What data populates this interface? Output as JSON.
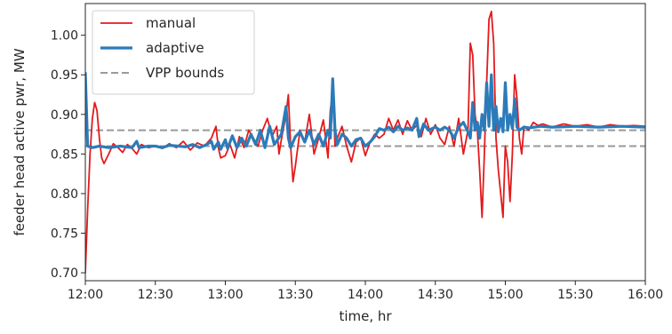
{
  "chart_data": {
    "type": "line",
    "xlabel": "time, hr",
    "ylabel": "feeder head active pwr, MW",
    "x_ticks": [
      "12:00",
      "12:30",
      "13:00",
      "13:30",
      "14:00",
      "14:30",
      "15:00",
      "15:30",
      "16:00"
    ],
    "y_ticks": [
      "0.70",
      "0.75",
      "0.80",
      "0.85",
      "0.90",
      "0.95",
      "1.00"
    ],
    "xlim": [
      "12:00",
      "16:00"
    ],
    "ylim": [
      0.69,
      1.04
    ],
    "grid": false,
    "legend_position": "upper-left",
    "series": [
      {
        "name": "manual",
        "color": "#e41a1c",
        "style": "solid",
        "points": [
          [
            "12:00",
            0.7
          ],
          [
            "12:01",
            0.78
          ],
          [
            "12:02",
            0.85
          ],
          [
            "12:03",
            0.895
          ],
          [
            "12:04",
            0.915
          ],
          [
            "12:05",
            0.905
          ],
          [
            "12:06",
            0.87
          ],
          [
            "12:07",
            0.845
          ],
          [
            "12:08",
            0.838
          ],
          [
            "12:10",
            0.85
          ],
          [
            "12:12",
            0.863
          ],
          [
            "12:14",
            0.858
          ],
          [
            "12:16",
            0.852
          ],
          [
            "12:18",
            0.862
          ],
          [
            "12:20",
            0.857
          ],
          [
            "12:22",
            0.85
          ],
          [
            "12:24",
            0.862
          ],
          [
            "12:27",
            0.858
          ],
          [
            "12:30",
            0.86
          ],
          [
            "12:33",
            0.857
          ],
          [
            "12:36",
            0.863
          ],
          [
            "12:39",
            0.858
          ],
          [
            "12:42",
            0.866
          ],
          [
            "12:45",
            0.855
          ],
          [
            "12:48",
            0.864
          ],
          [
            "12:51",
            0.86
          ],
          [
            "12:54",
            0.87
          ],
          [
            "12:56",
            0.885
          ],
          [
            "12:57",
            0.858
          ],
          [
            "12:58",
            0.845
          ],
          [
            "13:00",
            0.848
          ],
          [
            "13:02",
            0.862
          ],
          [
            "13:04",
            0.845
          ],
          [
            "13:06",
            0.872
          ],
          [
            "13:08",
            0.858
          ],
          [
            "13:10",
            0.88
          ],
          [
            "13:12",
            0.87
          ],
          [
            "13:14",
            0.86
          ],
          [
            "13:16",
            0.88
          ],
          [
            "13:18",
            0.895
          ],
          [
            "13:20",
            0.872
          ],
          [
            "13:22",
            0.885
          ],
          [
            "13:23",
            0.85
          ],
          [
            "13:24",
            0.868
          ],
          [
            "13:26",
            0.9
          ],
          [
            "13:27",
            0.925
          ],
          [
            "13:28",
            0.86
          ],
          [
            "13:29",
            0.815
          ],
          [
            "13:30",
            0.835
          ],
          [
            "13:32",
            0.88
          ],
          [
            "13:34",
            0.865
          ],
          [
            "13:36",
            0.9
          ],
          [
            "13:38",
            0.85
          ],
          [
            "13:40",
            0.87
          ],
          [
            "13:42",
            0.893
          ],
          [
            "13:44",
            0.845
          ],
          [
            "13:45",
            0.905
          ],
          [
            "13:46",
            0.93
          ],
          [
            "13:47",
            0.86
          ],
          [
            "13:48",
            0.87
          ],
          [
            "13:50",
            0.885
          ],
          [
            "13:52",
            0.86
          ],
          [
            "13:54",
            0.84
          ],
          [
            "13:56",
            0.865
          ],
          [
            "13:58",
            0.87
          ],
          [
            "14:00",
            0.848
          ],
          [
            "14:02",
            0.865
          ],
          [
            "14:04",
            0.875
          ],
          [
            "14:06",
            0.87
          ],
          [
            "14:08",
            0.875
          ],
          [
            "14:10",
            0.895
          ],
          [
            "14:12",
            0.88
          ],
          [
            "14:14",
            0.893
          ],
          [
            "14:16",
            0.875
          ],
          [
            "14:18",
            0.892
          ],
          [
            "14:20",
            0.88
          ],
          [
            "14:22",
            0.886
          ],
          [
            "14:24",
            0.872
          ],
          [
            "14:26",
            0.895
          ],
          [
            "14:28",
            0.875
          ],
          [
            "14:30",
            0.887
          ],
          [
            "14:32",
            0.87
          ],
          [
            "14:34",
            0.862
          ],
          [
            "14:36",
            0.885
          ],
          [
            "14:38",
            0.86
          ],
          [
            "14:40",
            0.895
          ],
          [
            "14:42",
            0.85
          ],
          [
            "14:44",
            0.88
          ],
          [
            "14:45",
            0.99
          ],
          [
            "14:46",
            0.975
          ],
          [
            "14:47",
            0.9
          ],
          [
            "14:48",
            0.88
          ],
          [
            "14:49",
            0.83
          ],
          [
            "14:50",
            0.77
          ],
          [
            "14:51",
            0.85
          ],
          [
            "14:52",
            0.94
          ],
          [
            "14:53",
            1.02
          ],
          [
            "14:54",
            1.03
          ],
          [
            "14:55",
            0.99
          ],
          [
            "14:56",
            0.87
          ],
          [
            "14:57",
            0.83
          ],
          [
            "14:58",
            0.8
          ],
          [
            "14:59",
            0.77
          ],
          [
            "15:00",
            0.86
          ],
          [
            "15:01",
            0.84
          ],
          [
            "15:02",
            0.79
          ],
          [
            "15:03",
            0.85
          ],
          [
            "15:04",
            0.95
          ],
          [
            "15:05",
            0.92
          ],
          [
            "15:06",
            0.87
          ],
          [
            "15:07",
            0.85
          ],
          [
            "15:08",
            0.885
          ],
          [
            "15:10",
            0.88
          ],
          [
            "15:12",
            0.89
          ],
          [
            "15:14",
            0.886
          ],
          [
            "15:16",
            0.888
          ],
          [
            "15:20",
            0.884
          ],
          [
            "15:25",
            0.888
          ],
          [
            "15:30",
            0.885
          ],
          [
            "15:35",
            0.887
          ],
          [
            "15:40",
            0.884
          ],
          [
            "15:45",
            0.887
          ],
          [
            "15:50",
            0.885
          ],
          [
            "15:55",
            0.886
          ],
          [
            "16:00",
            0.885
          ]
        ]
      },
      {
        "name": "adaptive",
        "color": "#2b7bba",
        "style": "solid",
        "points": [
          [
            "12:00",
            0.952
          ],
          [
            "12:01",
            0.86
          ],
          [
            "12:03",
            0.858
          ],
          [
            "12:06",
            0.86
          ],
          [
            "12:10",
            0.858
          ],
          [
            "12:15",
            0.86
          ],
          [
            "12:20",
            0.858
          ],
          [
            "12:22",
            0.866
          ],
          [
            "12:23",
            0.858
          ],
          [
            "12:27",
            0.86
          ],
          [
            "12:30",
            0.86
          ],
          [
            "12:33",
            0.858
          ],
          [
            "12:36",
            0.861
          ],
          [
            "12:40",
            0.86
          ],
          [
            "12:43",
            0.859
          ],
          [
            "12:46",
            0.862
          ],
          [
            "12:49",
            0.858
          ],
          [
            "12:52",
            0.862
          ],
          [
            "12:54",
            0.866
          ],
          [
            "12:55",
            0.856
          ],
          [
            "12:57",
            0.865
          ],
          [
            "12:58",
            0.856
          ],
          [
            "13:00",
            0.868
          ],
          [
            "13:01",
            0.857
          ],
          [
            "13:03",
            0.873
          ],
          [
            "13:05",
            0.858
          ],
          [
            "13:07",
            0.87
          ],
          [
            "13:09",
            0.86
          ],
          [
            "13:11",
            0.875
          ],
          [
            "13:13",
            0.862
          ],
          [
            "13:15",
            0.88
          ],
          [
            "13:17",
            0.858
          ],
          [
            "13:19",
            0.885
          ],
          [
            "13:21",
            0.862
          ],
          [
            "13:24",
            0.875
          ],
          [
            "13:26",
            0.91
          ],
          [
            "13:27",
            0.87
          ],
          [
            "13:28",
            0.858
          ],
          [
            "13:30",
            0.872
          ],
          [
            "13:32",
            0.878
          ],
          [
            "13:34",
            0.865
          ],
          [
            "13:36",
            0.88
          ],
          [
            "13:38",
            0.862
          ],
          [
            "13:40",
            0.875
          ],
          [
            "13:42",
            0.86
          ],
          [
            "13:44",
            0.88
          ],
          [
            "13:45",
            0.87
          ],
          [
            "13:46",
            0.945
          ],
          [
            "13:47",
            0.88
          ],
          [
            "13:48",
            0.862
          ],
          [
            "13:50",
            0.875
          ],
          [
            "13:52",
            0.87
          ],
          [
            "13:54",
            0.86
          ],
          [
            "13:56",
            0.868
          ],
          [
            "13:58",
            0.87
          ],
          [
            "14:00",
            0.86
          ],
          [
            "14:02",
            0.865
          ],
          [
            "14:04",
            0.872
          ],
          [
            "14:06",
            0.882
          ],
          [
            "14:08",
            0.88
          ],
          [
            "14:10",
            0.884
          ],
          [
            "14:12",
            0.878
          ],
          [
            "14:14",
            0.885
          ],
          [
            "14:16",
            0.88
          ],
          [
            "14:18",
            0.883
          ],
          [
            "14:20",
            0.88
          ],
          [
            "14:22",
            0.895
          ],
          [
            "14:23",
            0.872
          ],
          [
            "14:25",
            0.888
          ],
          [
            "14:27",
            0.88
          ],
          [
            "14:30",
            0.884
          ],
          [
            "14:32",
            0.88
          ],
          [
            "14:34",
            0.884
          ],
          [
            "14:36",
            0.88
          ],
          [
            "14:38",
            0.87
          ],
          [
            "14:40",
            0.884
          ],
          [
            "14:42",
            0.89
          ],
          [
            "14:44",
            0.878
          ],
          [
            "14:45",
            0.87
          ],
          [
            "14:46",
            0.915
          ],
          [
            "14:47",
            0.88
          ],
          [
            "14:48",
            0.89
          ],
          [
            "14:49",
            0.87
          ],
          [
            "14:50",
            0.9
          ],
          [
            "14:51",
            0.88
          ],
          [
            "14:52",
            0.94
          ],
          [
            "14:53",
            0.885
          ],
          [
            "14:54",
            0.95
          ],
          [
            "14:55",
            0.88
          ],
          [
            "14:56",
            0.91
          ],
          [
            "14:57",
            0.878
          ],
          [
            "14:58",
            0.895
          ],
          [
            "14:59",
            0.878
          ],
          [
            "15:00",
            0.94
          ],
          [
            "15:01",
            0.88
          ],
          [
            "15:02",
            0.9
          ],
          [
            "15:03",
            0.882
          ],
          [
            "15:04",
            0.92
          ],
          [
            "15:05",
            0.884
          ],
          [
            "15:06",
            0.88
          ],
          [
            "15:08",
            0.884
          ],
          [
            "15:10",
            0.883
          ],
          [
            "15:15",
            0.885
          ],
          [
            "15:20",
            0.884
          ],
          [
            "15:30",
            0.885
          ],
          [
            "15:40",
            0.884
          ],
          [
            "15:50",
            0.885
          ],
          [
            "16:00",
            0.884
          ]
        ]
      }
    ],
    "bounds": {
      "name": "VPP bounds",
      "color": "#999999",
      "style": "dashed",
      "values": [
        0.86,
        0.88
      ]
    }
  }
}
